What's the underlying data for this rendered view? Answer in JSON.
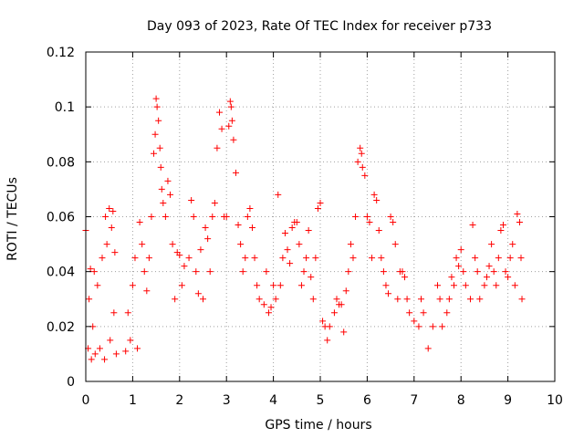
{
  "chart_data": {
    "type": "scatter",
    "title": "Day 093 of 2023, Rate Of TEC Index for receiver p733",
    "xlabel": "GPS time / hours",
    "ylabel": "ROTI / TECUs",
    "xlim": [
      0,
      10
    ],
    "ylim": [
      0,
      0.12
    ],
    "xticks": [
      0,
      1,
      2,
      3,
      4,
      5,
      6,
      7,
      8,
      9,
      10
    ],
    "xtick_labels": [
      "0",
      "1",
      "2",
      "3",
      "4",
      "5",
      "6",
      "7",
      "8",
      "9",
      "10"
    ],
    "yticks": [
      0,
      0.02,
      0.04,
      0.06,
      0.08,
      0.1,
      0.12
    ],
    "ytick_labels": [
      "0",
      "0.02",
      "0.04",
      "0.06",
      "0.08",
      "0.1",
      "0.12"
    ],
    "grid": true,
    "marker": "+",
    "color": "#ff0000",
    "series": [
      {
        "name": "ROTI",
        "points": [
          [
            0.0,
            0.055
          ],
          [
            0.05,
            0.012
          ],
          [
            0.07,
            0.03
          ],
          [
            0.1,
            0.041
          ],
          [
            0.12,
            0.008
          ],
          [
            0.15,
            0.02
          ],
          [
            0.18,
            0.04
          ],
          [
            0.2,
            0.01
          ],
          [
            0.25,
            0.035
          ],
          [
            0.3,
            0.012
          ],
          [
            0.35,
            0.045
          ],
          [
            0.4,
            0.008
          ],
          [
            0.42,
            0.06
          ],
          [
            0.45,
            0.05
          ],
          [
            0.5,
            0.063
          ],
          [
            0.52,
            0.015
          ],
          [
            0.55,
            0.056
          ],
          [
            0.58,
            0.062
          ],
          [
            0.6,
            0.025
          ],
          [
            0.62,
            0.047
          ],
          [
            0.65,
            0.01
          ],
          [
            0.85,
            0.011
          ],
          [
            0.9,
            0.025
          ],
          [
            0.95,
            0.015
          ],
          [
            1.0,
            0.035
          ],
          [
            1.05,
            0.045
          ],
          [
            1.1,
            0.012
          ],
          [
            1.15,
            0.058
          ],
          [
            1.2,
            0.05
          ],
          [
            1.25,
            0.04
          ],
          [
            1.3,
            0.033
          ],
          [
            1.35,
            0.045
          ],
          [
            1.4,
            0.06
          ],
          [
            1.45,
            0.083
          ],
          [
            1.48,
            0.09
          ],
          [
            1.5,
            0.103
          ],
          [
            1.52,
            0.1
          ],
          [
            1.55,
            0.095
          ],
          [
            1.58,
            0.085
          ],
          [
            1.6,
            0.078
          ],
          [
            1.62,
            0.07
          ],
          [
            1.65,
            0.065
          ],
          [
            1.7,
            0.06
          ],
          [
            1.75,
            0.073
          ],
          [
            1.8,
            0.068
          ],
          [
            1.85,
            0.05
          ],
          [
            1.9,
            0.03
          ],
          [
            1.95,
            0.047
          ],
          [
            2.0,
            0.046
          ],
          [
            2.05,
            0.035
          ],
          [
            2.1,
            0.042
          ],
          [
            2.2,
            0.045
          ],
          [
            2.25,
            0.066
          ],
          [
            2.3,
            0.06
          ],
          [
            2.35,
            0.04
          ],
          [
            2.4,
            0.032
          ],
          [
            2.45,
            0.048
          ],
          [
            2.5,
            0.03
          ],
          [
            2.55,
            0.056
          ],
          [
            2.6,
            0.052
          ],
          [
            2.65,
            0.04
          ],
          [
            2.7,
            0.06
          ],
          [
            2.75,
            0.065
          ],
          [
            2.8,
            0.085
          ],
          [
            2.85,
            0.098
          ],
          [
            2.9,
            0.092
          ],
          [
            2.95,
            0.06
          ],
          [
            3.0,
            0.06
          ],
          [
            3.05,
            0.093
          ],
          [
            3.08,
            0.102
          ],
          [
            3.1,
            0.1
          ],
          [
            3.12,
            0.095
          ],
          [
            3.15,
            0.088
          ],
          [
            3.2,
            0.076
          ],
          [
            3.25,
            0.057
          ],
          [
            3.3,
            0.05
          ],
          [
            3.35,
            0.04
          ],
          [
            3.4,
            0.045
          ],
          [
            3.45,
            0.06
          ],
          [
            3.5,
            0.063
          ],
          [
            3.55,
            0.056
          ],
          [
            3.6,
            0.045
          ],
          [
            3.65,
            0.035
          ],
          [
            3.7,
            0.03
          ],
          [
            3.8,
            0.028
          ],
          [
            3.85,
            0.04
          ],
          [
            3.9,
            0.025
          ],
          [
            3.95,
            0.027
          ],
          [
            4.0,
            0.035
          ],
          [
            4.05,
            0.03
          ],
          [
            4.1,
            0.068
          ],
          [
            4.15,
            0.035
          ],
          [
            4.2,
            0.045
          ],
          [
            4.25,
            0.054
          ],
          [
            4.3,
            0.048
          ],
          [
            4.35,
            0.043
          ],
          [
            4.4,
            0.056
          ],
          [
            4.45,
            0.058
          ],
          [
            4.5,
            0.058
          ],
          [
            4.55,
            0.05
          ],
          [
            4.6,
            0.035
          ],
          [
            4.65,
            0.04
          ],
          [
            4.7,
            0.045
          ],
          [
            4.75,
            0.055
          ],
          [
            4.8,
            0.038
          ],
          [
            4.85,
            0.03
          ],
          [
            4.9,
            0.045
          ],
          [
            4.95,
            0.063
          ],
          [
            5.0,
            0.065
          ],
          [
            5.05,
            0.022
          ],
          [
            5.1,
            0.02
          ],
          [
            5.15,
            0.015
          ],
          [
            5.2,
            0.02
          ],
          [
            5.3,
            0.025
          ],
          [
            5.35,
            0.03
          ],
          [
            5.4,
            0.028
          ],
          [
            5.45,
            0.028
          ],
          [
            5.5,
            0.018
          ],
          [
            5.55,
            0.033
          ],
          [
            5.6,
            0.04
          ],
          [
            5.65,
            0.05
          ],
          [
            5.7,
            0.045
          ],
          [
            5.75,
            0.06
          ],
          [
            5.8,
            0.08
          ],
          [
            5.85,
            0.085
          ],
          [
            5.88,
            0.083
          ],
          [
            5.9,
            0.078
          ],
          [
            5.95,
            0.075
          ],
          [
            6.0,
            0.06
          ],
          [
            6.05,
            0.058
          ],
          [
            6.1,
            0.045
          ],
          [
            6.15,
            0.068
          ],
          [
            6.2,
            0.066
          ],
          [
            6.25,
            0.055
          ],
          [
            6.3,
            0.045
          ],
          [
            6.35,
            0.04
          ],
          [
            6.4,
            0.035
          ],
          [
            6.45,
            0.032
          ],
          [
            6.5,
            0.06
          ],
          [
            6.55,
            0.058
          ],
          [
            6.6,
            0.05
          ],
          [
            6.65,
            0.03
          ],
          [
            6.7,
            0.04
          ],
          [
            6.75,
            0.04
          ],
          [
            6.8,
            0.038
          ],
          [
            6.85,
            0.03
          ],
          [
            6.9,
            0.025
          ],
          [
            7.0,
            0.022
          ],
          [
            7.1,
            0.02
          ],
          [
            7.15,
            0.03
          ],
          [
            7.2,
            0.025
          ],
          [
            7.3,
            0.012
          ],
          [
            7.4,
            0.02
          ],
          [
            7.5,
            0.035
          ],
          [
            7.55,
            0.03
          ],
          [
            7.6,
            0.02
          ],
          [
            7.7,
            0.025
          ],
          [
            7.75,
            0.03
          ],
          [
            7.8,
            0.038
          ],
          [
            7.85,
            0.035
          ],
          [
            7.9,
            0.045
          ],
          [
            7.95,
            0.042
          ],
          [
            8.0,
            0.048
          ],
          [
            8.05,
            0.04
          ],
          [
            8.1,
            0.035
          ],
          [
            8.2,
            0.03
          ],
          [
            8.25,
            0.057
          ],
          [
            8.3,
            0.045
          ],
          [
            8.35,
            0.04
          ],
          [
            8.4,
            0.03
          ],
          [
            8.5,
            0.035
          ],
          [
            8.55,
            0.038
          ],
          [
            8.6,
            0.042
          ],
          [
            8.65,
            0.05
          ],
          [
            8.7,
            0.04
          ],
          [
            8.75,
            0.035
          ],
          [
            8.8,
            0.045
          ],
          [
            8.85,
            0.055
          ],
          [
            8.9,
            0.057
          ],
          [
            8.95,
            0.04
          ],
          [
            9.0,
            0.038
          ],
          [
            9.05,
            0.045
          ],
          [
            9.1,
            0.05
          ],
          [
            9.15,
            0.035
          ],
          [
            9.2,
            0.061
          ],
          [
            9.25,
            0.058
          ],
          [
            9.28,
            0.045
          ],
          [
            9.3,
            0.03
          ]
        ]
      }
    ]
  }
}
